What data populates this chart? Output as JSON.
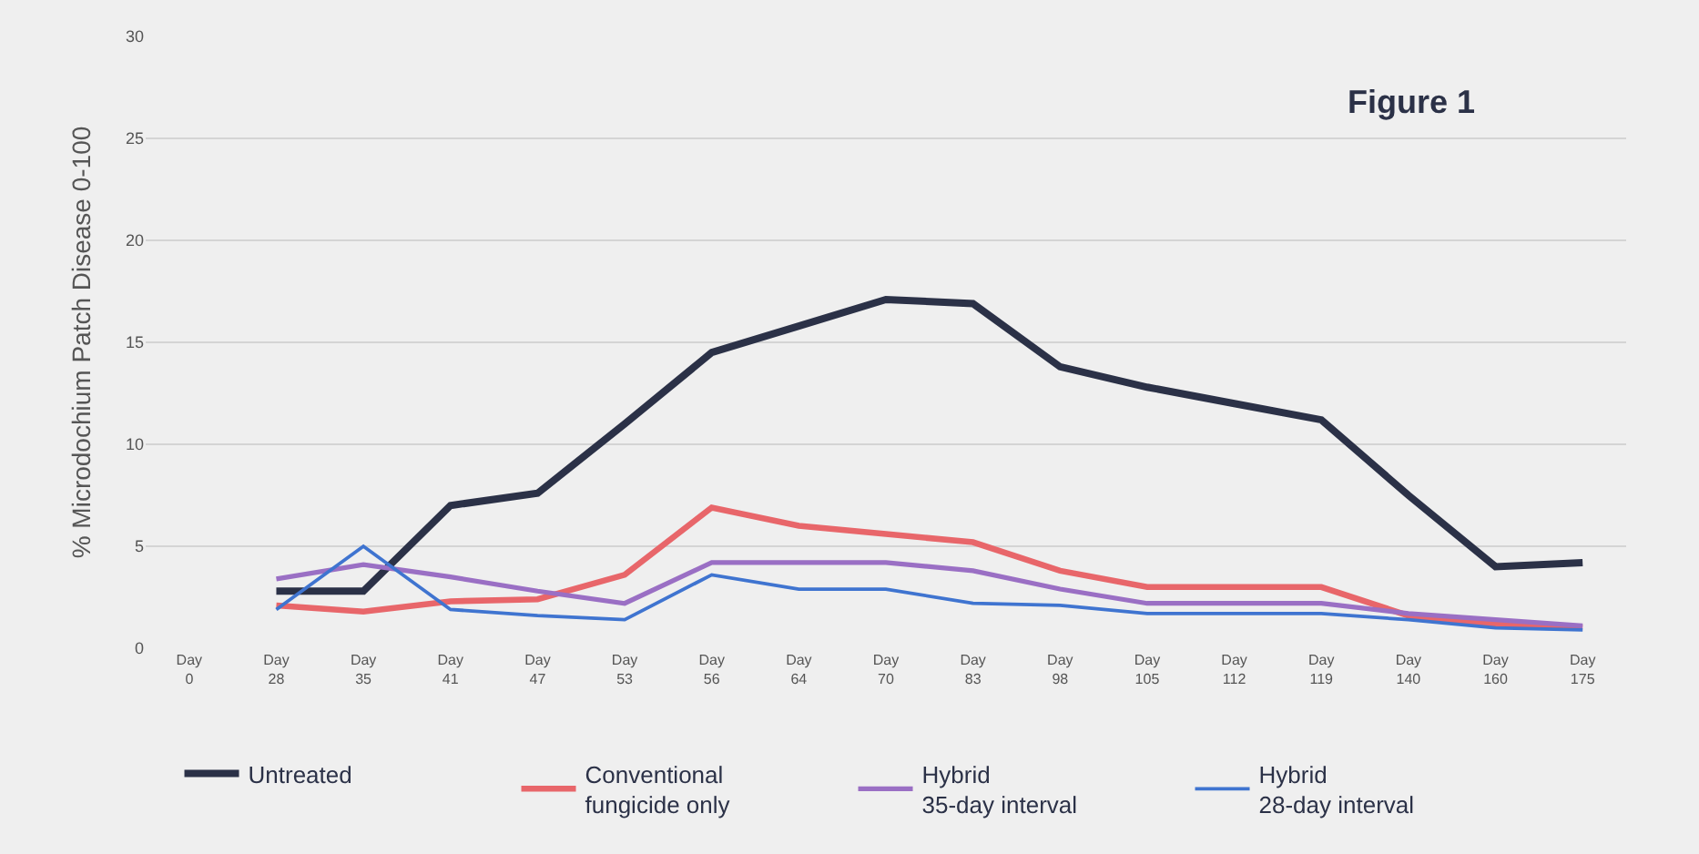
{
  "chart_data": {
    "type": "line",
    "ylabel": "% Microdochium Patch Disease 0-100",
    "annotations": [
      "Figure 1"
    ],
    "categories": [
      "Day\n0",
      "Day\n28",
      "Day\n35",
      "Day\n41",
      "Day\n47",
      "Day\n53",
      "Day\n56",
      "Day\n64",
      "Day\n70",
      "Day\n83",
      "Day\n98",
      "Day\n105",
      "Day\n112",
      "Day\n119",
      "Day\n140",
      "Day\n160",
      "Day\n175"
    ],
    "series": [
      {
        "name": "Untreated",
        "color": "#2b3147",
        "values": [
          null,
          2.8,
          2.8,
          7.0,
          7.6,
          11.0,
          14.5,
          15.8,
          17.1,
          16.9,
          13.8,
          12.8,
          12.0,
          11.2,
          7.5,
          4.0,
          4.2
        ]
      },
      {
        "name": "Conventional\nfungicide only",
        "color": "#e8666a",
        "values": [
          null,
          2.1,
          1.8,
          2.3,
          2.4,
          3.6,
          6.9,
          6.0,
          5.6,
          5.2,
          3.8,
          3.0,
          3.0,
          3.0,
          1.6,
          1.2,
          1.0
        ]
      },
      {
        "name": "Hybrid\n35-day interval",
        "color": "#9a6fc4",
        "values": [
          null,
          3.4,
          4.1,
          3.5,
          2.8,
          2.2,
          4.2,
          4.2,
          4.2,
          3.8,
          2.9,
          2.2,
          2.2,
          2.2,
          1.7,
          1.4,
          1.1
        ]
      },
      {
        "name": "Hybrid\n28-day interval",
        "color": "#3f74d0",
        "values": [
          null,
          1.9,
          5.0,
          1.9,
          1.6,
          1.4,
          3.6,
          2.9,
          2.9,
          2.2,
          2.1,
          1.7,
          1.7,
          1.7,
          1.4,
          1.0,
          0.9
        ]
      }
    ],
    "ylim": [
      0,
      30
    ],
    "yticks": [
      0,
      5,
      10,
      15,
      20,
      25,
      30
    ],
    "grid": "y",
    "legend": "bottom",
    "marker": "none",
    "line_style": "solid"
  }
}
